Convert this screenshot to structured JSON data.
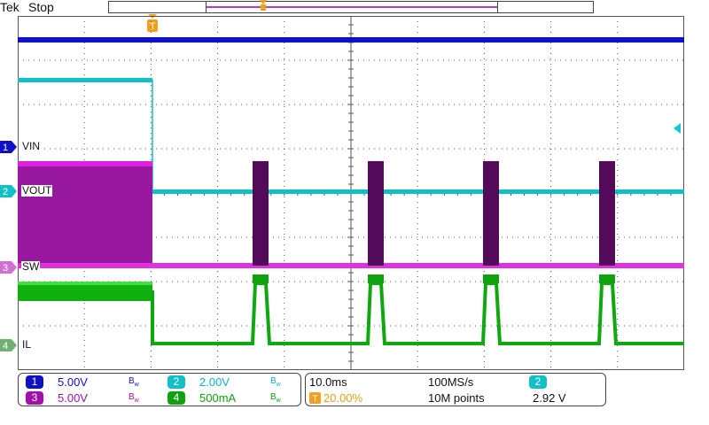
{
  "header": {
    "brand": "Tek",
    "acq_status": "Stop"
  },
  "colors": {
    "ch1": "#1010c8",
    "ch2": "#10c0c8",
    "ch3": "#a010a8",
    "ch4": "#10a810",
    "trigger": "#f0a020",
    "grid": "#555555"
  },
  "traces": {
    "ch1": {
      "number": "1",
      "label": "VIN"
    },
    "ch2": {
      "number": "2",
      "label": "VOUT"
    },
    "ch3": {
      "number": "3",
      "label": "SW"
    },
    "ch4": {
      "number": "4",
      "label": "IL"
    }
  },
  "trigger_marker_icon": "trigger-t-icon",
  "trigger_level_icon": "trigger-level-arrow-icon",
  "channel_settings": {
    "ch1": {
      "number": "1",
      "scale": "5.00V",
      "bw": "B",
      "bw_sub": "w"
    },
    "ch2": {
      "number": "2",
      "scale": "2.00V",
      "bw": "B",
      "bw_sub": "w"
    },
    "ch3": {
      "number": "3",
      "scale": "5.00V",
      "bw": "B",
      "bw_sub": "w"
    },
    "ch4": {
      "number": "4",
      "scale": "500mA",
      "bw": "B",
      "bw_sub": "w"
    }
  },
  "horizontal": {
    "time_per_div": "10.0ms",
    "sample_rate": "100MS/s",
    "trigger_position": "20.00%",
    "record_length": "10M points"
  },
  "trigger": {
    "source": "2",
    "level": "2.92 V"
  }
}
